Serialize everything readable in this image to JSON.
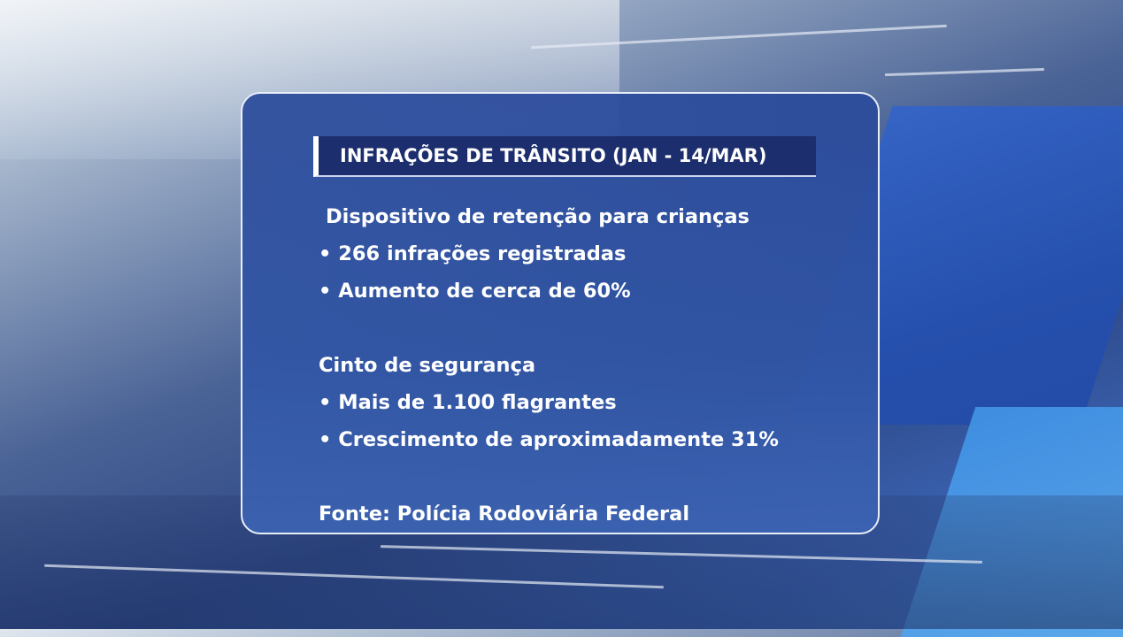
{
  "title": "INFRAÇÕES DE TRÂNSITO (JAN - 14/MAR)",
  "sections": [
    {
      "heading": "Dispositivo de retenção para crianças",
      "items": [
        "• 266 infrações registradas",
        "• Aumento de cerca de 60%"
      ]
    },
    {
      "heading": "Cinto de segurança",
      "items": [
        "• Mais de 1.100 flagrantes",
        "• Crescimento de aproximadamente 31%"
      ]
    }
  ],
  "source": "Fonte: Polícia Rodoviária Federal"
}
